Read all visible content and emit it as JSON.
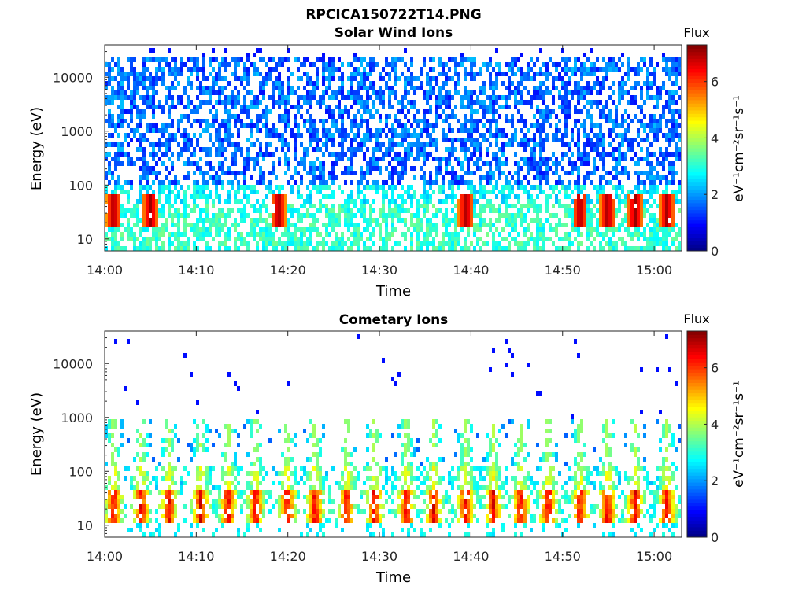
{
  "figure": {
    "title": "RPCICA150722T14.PNG"
  },
  "chart_data": [
    {
      "type": "heatmap",
      "title": "Solar Wind Ions",
      "xlabel": "Time",
      "ylabel": "Energy (eV)",
      "x_ticks": [
        "14:00",
        "14:10",
        "14:20",
        "14:30",
        "14:40",
        "14:50",
        "15:00"
      ],
      "x_range_minutes": [
        0,
        63
      ],
      "y_scale": "log",
      "y_ticks": [
        10,
        100,
        1000,
        10000
      ],
      "y_range": [
        6,
        40000
      ],
      "colorbar": {
        "title": "Flux",
        "units": "eV⁻¹cm⁻²sr⁻¹s⁻¹",
        "ticks": [
          0,
          2,
          4,
          6
        ],
        "range": [
          0,
          7.3
        ],
        "colormap": "jet"
      },
      "intense_events_min": [
        1,
        5,
        19,
        39.5,
        52,
        55,
        58,
        61.5
      ],
      "fill_pattern": "broad blue flux between 100 and 20000 eV, cyan/green below 100 eV, orange/red spots near 30 eV"
    },
    {
      "type": "heatmap",
      "title": "Cometary Ions",
      "xlabel": "Time",
      "ylabel": "Energy (eV)",
      "x_ticks": [
        "14:00",
        "14:10",
        "14:20",
        "14:30",
        "14:40",
        "14:50",
        "15:00"
      ],
      "x_range_minutes": [
        0,
        63
      ],
      "y_scale": "log",
      "y_ticks": [
        10,
        100,
        1000,
        10000
      ],
      "y_range": [
        6,
        40000
      ],
      "colorbar": {
        "title": "Flux",
        "units": "eV⁻¹cm⁻²sr⁻¹s⁻¹",
        "ticks": [
          0,
          2,
          4,
          6
        ],
        "range": [
          0,
          7.3
        ],
        "colormap": "jet"
      },
      "intense_events_min": [
        1,
        4,
        7,
        10.5,
        13.5,
        16.5,
        20,
        23,
        26.5,
        29.5,
        33,
        36,
        39.5,
        42.5,
        45.5,
        48.5,
        52,
        55,
        58,
        61.5
      ],
      "fill_pattern": "sparse, vertical bursts of orange/red flux at 15-60 eV with tails up to ~1000 eV"
    }
  ]
}
